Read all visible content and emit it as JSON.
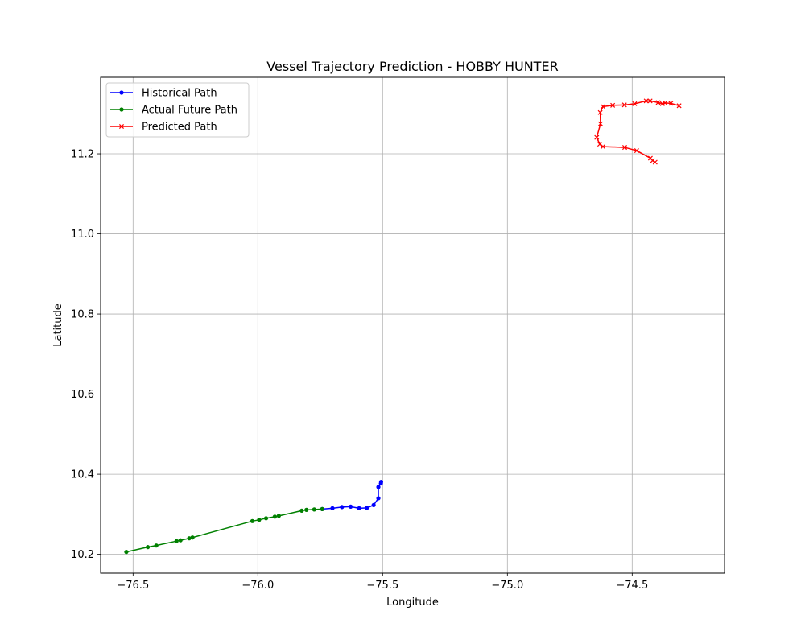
{
  "chart_data": {
    "type": "line",
    "title": "Vessel Trajectory Prediction - HOBBY HUNTER",
    "xlabel": "Longitude",
    "ylabel": "Latitude",
    "xlim": [
      -76.63,
      -74.13
    ],
    "ylim": [
      10.153,
      11.391
    ],
    "xticks": [
      -76.5,
      -76.0,
      -75.5,
      -75.0,
      -74.5
    ],
    "xtick_labels": [
      "−76.5",
      "−76.0",
      "−75.5",
      "−75.0",
      "−74.5"
    ],
    "yticks": [
      10.2,
      10.4,
      10.6,
      10.8,
      11.0,
      11.2
    ],
    "ytick_labels": [
      "10.2",
      "10.4",
      "10.6",
      "10.8",
      "11.0",
      "11.2"
    ],
    "grid": true,
    "legend_position": "top-left",
    "series": [
      {
        "name": "Historical Path",
        "color": "#0000ff",
        "marker": "circle",
        "points": [
          [
            -75.506,
            10.381
          ],
          [
            -75.507,
            10.377
          ],
          [
            -75.517,
            10.368
          ],
          [
            -75.517,
            10.34
          ],
          [
            -75.536,
            10.323
          ],
          [
            -75.563,
            10.316
          ],
          [
            -75.594,
            10.315
          ],
          [
            -75.628,
            10.319
          ],
          [
            -75.663,
            10.318
          ],
          [
            -75.701,
            10.315
          ],
          [
            -75.742,
            10.313
          ]
        ]
      },
      {
        "name": "Actual Future Path",
        "color": "#008000",
        "marker": "circle",
        "points": [
          [
            -75.742,
            10.313
          ],
          [
            -75.774,
            10.312
          ],
          [
            -75.805,
            10.311
          ],
          [
            -75.824,
            10.309
          ],
          [
            -75.916,
            10.296
          ],
          [
            -75.932,
            10.294
          ],
          [
            -75.967,
            10.29
          ],
          [
            -75.995,
            10.286
          ],
          [
            -76.022,
            10.283
          ],
          [
            -76.262,
            10.242
          ],
          [
            -76.275,
            10.24
          ],
          [
            -76.31,
            10.235
          ],
          [
            -76.326,
            10.233
          ],
          [
            -76.407,
            10.222
          ],
          [
            -76.441,
            10.218
          ],
          [
            -76.527,
            10.206
          ]
        ]
      },
      {
        "name": "Predicted Path",
        "color": "#ff0000",
        "marker": "x",
        "points": [
          [
            -74.312,
            11.32
          ],
          [
            -74.345,
            11.326
          ],
          [
            -74.368,
            11.327
          ],
          [
            -74.379,
            11.325
          ],
          [
            -74.396,
            11.328
          ],
          [
            -74.428,
            11.332
          ],
          [
            -74.444,
            11.332
          ],
          [
            -74.49,
            11.325
          ],
          [
            -74.531,
            11.322
          ],
          [
            -74.578,
            11.321
          ],
          [
            -74.617,
            11.318
          ],
          [
            -74.628,
            11.303
          ],
          [
            -74.627,
            11.275
          ],
          [
            -74.642,
            11.241
          ],
          [
            -74.63,
            11.224
          ],
          [
            -74.617,
            11.218
          ],
          [
            -74.53,
            11.216
          ],
          [
            -74.482,
            11.208
          ],
          [
            -74.427,
            11.189
          ],
          [
            -74.418,
            11.183
          ],
          [
            -74.408,
            11.179
          ]
        ]
      }
    ]
  }
}
